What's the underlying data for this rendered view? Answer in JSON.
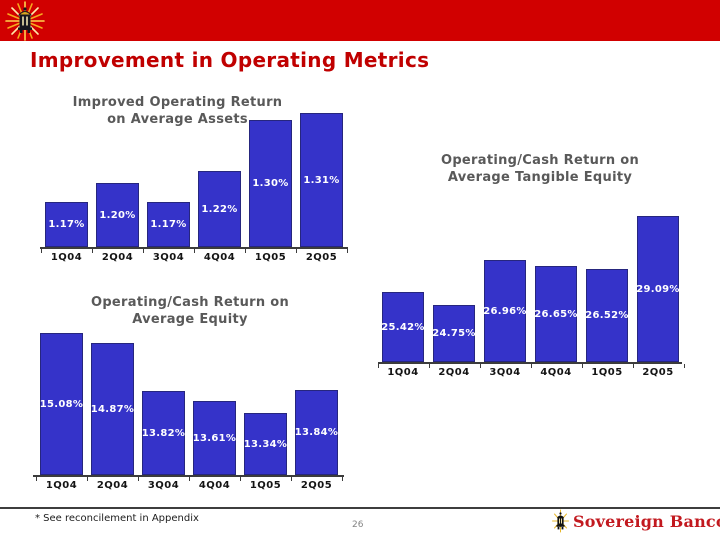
{
  "slide": {
    "title": "Improvement in Operating Metrics",
    "footnote": "* See reconcilement in Appendix",
    "page_number": "26",
    "logo_text": "Sovereign Bancorp"
  },
  "colors": {
    "banner_red": "#d10000",
    "title_red": "#c00000",
    "chart_title_gray": "#595959",
    "bar_fill": "#3533c9",
    "bar_border": "#26267e",
    "axis_dark": "#3c3c3c",
    "value_label_white": "#ffffff",
    "logo_red": "#c2191f"
  },
  "chart_data": [
    {
      "type": "bar",
      "title": "Improved Operating Return on Average Assets",
      "title_lines": [
        "Improved Operating Return",
        "on Average Assets"
      ],
      "categories": [
        "1Q04",
        "2Q04",
        "3Q04",
        "4Q04",
        "1Q05",
        "2Q05"
      ],
      "values": [
        1.17,
        1.2,
        1.17,
        1.22,
        1.3,
        1.31
      ],
      "labels": [
        "1.17%",
        "1.20%",
        "1.17%",
        "1.22%",
        "1.30%",
        "1.31%"
      ],
      "ylabel": "",
      "ylim": [
        1.1,
        1.32
      ],
      "grid": false,
      "legend": "none"
    },
    {
      "type": "bar",
      "title": "Operating/Cash Return on Average Tangible Equity",
      "title_lines": [
        "Operating/Cash Return on",
        "Average Tangible Equity"
      ],
      "categories": [
        "1Q04",
        "2Q04",
        "3Q04",
        "4Q04",
        "1Q05",
        "2Q05"
      ],
      "values": [
        25.42,
        24.75,
        26.96,
        26.65,
        26.52,
        29.09
      ],
      "labels": [
        "25.42%",
        "24.75%",
        "26.96%",
        "26.65%",
        "26.52%",
        "29.09%"
      ],
      "ylabel": "",
      "ylim": [
        22.0,
        29.3
      ],
      "grid": false,
      "legend": "none"
    },
    {
      "type": "bar",
      "title": "Operating/Cash Return on Average Equity",
      "title_lines": [
        "Operating/Cash Return on",
        "Average Equity"
      ],
      "categories": [
        "1Q04",
        "2Q04",
        "3Q04",
        "4Q04",
        "1Q05",
        "2Q05"
      ],
      "values": [
        15.08,
        14.87,
        13.82,
        13.61,
        13.34,
        13.84
      ],
      "labels": [
        "15.08%",
        "14.87%",
        "13.82%",
        "13.61%",
        "13.34%",
        "13.84%"
      ],
      "ylabel": "",
      "ylim": [
        12.0,
        15.15
      ],
      "grid": false,
      "legend": "none"
    }
  ]
}
